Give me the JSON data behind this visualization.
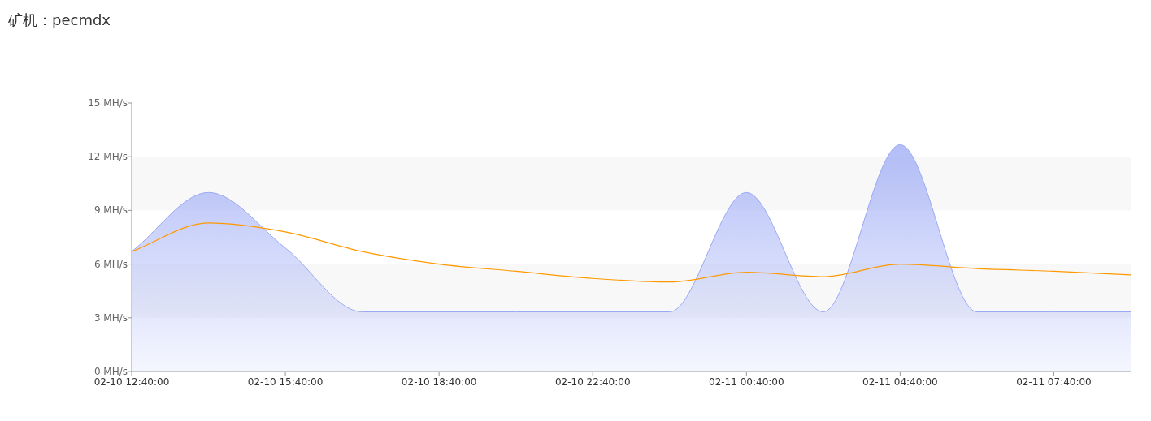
{
  "chart_data": {
    "type": "area",
    "title": "矿机：pecmdx",
    "categories": [
      "02-10 12:40:00",
      null,
      "02-10 15:40:00",
      null,
      "02-10 18:40:00",
      null,
      "02-10 22:40:00",
      null,
      "02-11 00:40:00",
      null,
      "02-11 04:40:00",
      null,
      "02-11 07:40:00",
      null
    ],
    "series": [
      {
        "color": "#9aa8f5",
        "values": [
          6.7,
          10,
          6.9,
          3.33,
          3.33,
          3.33,
          3.33,
          3.33,
          10,
          3.33,
          12.67,
          3.33,
          3.33,
          3.33
        ]
      },
      {
        "type": "line",
        "color": "#ff9900",
        "values": [
          6.7,
          8.3,
          7.8,
          6.7,
          6.0,
          5.6,
          5.2,
          5.0,
          5.55,
          5.3,
          6.0,
          5.75,
          5.6,
          5.4
        ]
      }
    ],
    "ylim": [
      0,
      15
    ],
    "yticks": [
      {
        "value": 0,
        "label": "0 MH/s"
      },
      {
        "value": 3,
        "label": "3 MH/s"
      },
      {
        "value": 6,
        "label": "6 MH/s"
      },
      {
        "value": 9,
        "label": "9 MH/s"
      },
      {
        "value": 12,
        "label": "12 MH/s"
      },
      {
        "value": 15,
        "label": "15 MH/s"
      }
    ],
    "bands": [
      {
        "axis": "y",
        "from": 3,
        "to": 6,
        "color": "#f8f8f8"
      },
      {
        "axis": "y",
        "from": 9,
        "to": 12,
        "color": "#f8f8f8"
      }
    ]
  }
}
